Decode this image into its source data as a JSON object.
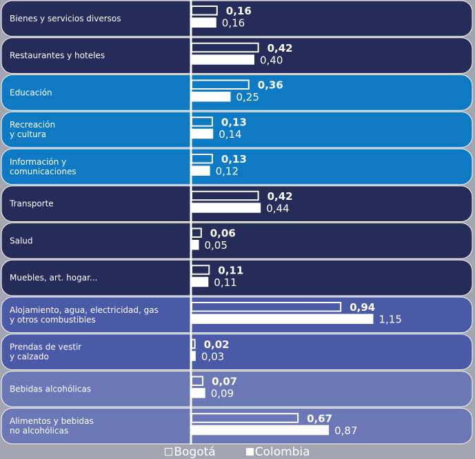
{
  "chart_data": {
    "type": "bar",
    "orientation": "horizontal",
    "categories": [
      "Bienes y servicios diversos",
      "Restaurantes y hoteles",
      "Educación",
      "Recreación\ny cultura",
      "Información y\ncomunicaciones",
      "Transporte",
      "Salud",
      "Muebles, art. hogar...",
      "Alojamiento, agua, electricidad, gas\ny otros combustibles",
      "Prendas de vestir\ny calzado",
      "Bebidas alcohólicas",
      "Alimentos y bebidas\nno alcohólicas"
    ],
    "series": [
      {
        "name": "Bogotá",
        "style": "outline",
        "values": [
          0.16,
          0.42,
          0.36,
          0.13,
          0.13,
          0.42,
          0.06,
          0.11,
          0.94,
          0.02,
          0.07,
          0.67
        ],
        "labels": [
          "0,16",
          "0,42",
          "0,36",
          "0,13",
          "0,13",
          "0,42",
          "0,06",
          "0,11",
          "0,94",
          "0,02",
          "0,07",
          "0,67"
        ]
      },
      {
        "name": "Colombia",
        "style": "filled",
        "values": [
          0.16,
          0.4,
          0.25,
          0.14,
          0.12,
          0.44,
          0.05,
          0.11,
          1.15,
          0.03,
          0.09,
          0.87
        ],
        "labels": [
          "0,16",
          "0,40",
          "0,25",
          "0,14",
          "0,12",
          "0,44",
          "0,05",
          "0,11",
          "1,15",
          "0,03",
          "0,09",
          "0,87"
        ]
      }
    ],
    "row_colors": [
      "#262b57",
      "#262b57",
      "#0e7ac4",
      "#0e7ac4",
      "#0e7ac4",
      "#262b57",
      "#262b57",
      "#262b57",
      "#4a5aa6",
      "#4a5aa6",
      "#6b78b5",
      "#6b78b5"
    ],
    "border_colors": [
      "#ffffff",
      "#ffffff",
      "#ffffff",
      "#ffffff",
      "#ffffff",
      "#ffffff",
      "#ffffff",
      "#ffffff",
      "#ffffff",
      "#ffffff",
      "#ffffff",
      "#ffffff"
    ],
    "xlim": [
      0,
      1.15
    ],
    "legend_position": "bottom-center",
    "grid": false,
    "bar_color": "#ffffff"
  }
}
